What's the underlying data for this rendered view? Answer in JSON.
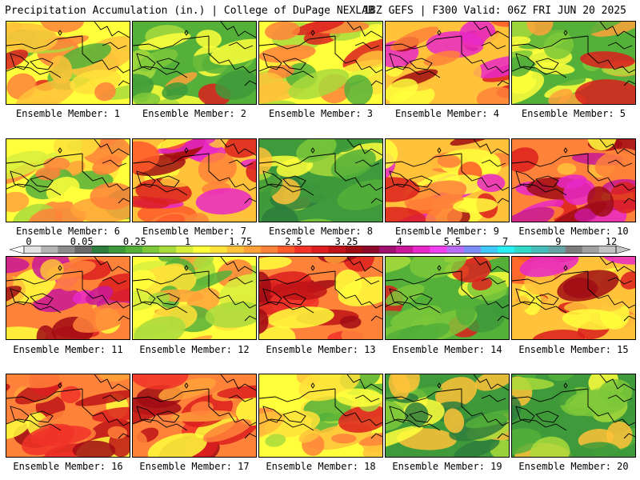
{
  "header": {
    "left": "Precipitation Accumulation (in.) | College of DuPage NEXLAB",
    "right": "18Z GEFS | F300 Valid: 06Z FRI JUN 20 2025"
  },
  "member_prefix": "Ensemble Member:",
  "members": [
    "1",
    "2",
    "3",
    "4",
    "5",
    "6",
    "7",
    "8",
    "9",
    "10",
    "11",
    "12",
    "13",
    "14",
    "15",
    "16",
    "17",
    "18",
    "19",
    "20"
  ],
  "member_themes": [
    "mixed",
    "greenR",
    "mixed",
    "redwet",
    "greenR",
    "yellow",
    "redwet",
    "green",
    "redwet",
    "pinkwet",
    "pinkwet",
    "yellow",
    "red",
    "greenR",
    "redwet",
    "red",
    "red",
    "mixed",
    "green",
    "green"
  ],
  "colorbar": {
    "labels": [
      "0",
      "0.05",
      "0.25",
      "1",
      "1.75",
      "2.5",
      "3.25",
      "4",
      "5.5",
      "7",
      "9",
      "12"
    ],
    "colors": [
      "#e2e2e2",
      "#b4b4b4",
      "#8c8c8c",
      "#6a6a6a",
      "#2d7d3c",
      "#3e9a3a",
      "#55b03a",
      "#7cc83a",
      "#a9da3c",
      "#d8ee3c",
      "#ffff3c",
      "#ffe23a",
      "#ffc23a",
      "#ffa23a",
      "#ff823a",
      "#ff5a2a",
      "#f03228",
      "#dc1e1e",
      "#c01418",
      "#a00c14",
      "#8c0a2a",
      "#a0106e",
      "#c81898",
      "#e828c8",
      "#f040f0",
      "#b86cf4",
      "#7c8cf8",
      "#40c8f8",
      "#28f0f0",
      "#30d8c8",
      "#48bcb8",
      "#64a4a4",
      "#7c7c7c",
      "#a0a0a0",
      "#c4c4c4"
    ]
  }
}
